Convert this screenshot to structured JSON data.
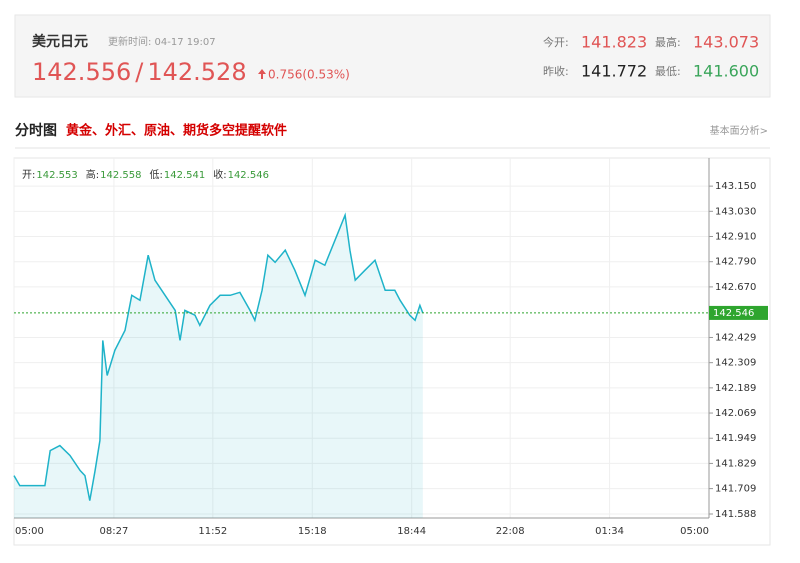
{
  "header": {
    "title": "美元日元",
    "update_time": "更新时间: 04-17 19:07",
    "price": "142.556",
    "separator": "/",
    "price2": "142.528",
    "change": "0.756(0.53%)",
    "stats": [
      {
        "label": "今开:",
        "value": "141.823"
      },
      {
        "label": "最高:",
        "value": "143.073"
      },
      {
        "label": "昨收:",
        "value": "141.772"
      },
      {
        "label": "最低:",
        "value": "141.600"
      }
    ]
  },
  "section": {
    "title": "分时图",
    "promo": "黄金、外汇、原油、期货多空提醒软件",
    "link": "基本面分析>"
  },
  "chart_data": {
    "type": "line",
    "info": [
      {
        "label": "开:",
        "value": 142.553
      },
      {
        "label": "高:",
        "value": 142.558
      },
      {
        "label": "低:",
        "value": 142.541
      },
      {
        "label": "收:",
        "value": 142.546
      }
    ],
    "x": [
      0,
      12,
      64,
      75,
      95,
      116,
      137,
      147,
      157,
      168,
      178,
      184,
      193,
      209,
      230,
      244,
      261,
      278,
      292,
      313,
      334,
      344,
      354,
      375,
      385,
      406,
      427,
      448,
      468,
      489,
      499,
      514,
      526,
      541,
      562,
      582,
      603,
      624,
      644,
      665,
      686,
      696,
      707,
      727,
      748,
      769,
      789,
      800,
      820,
      831,
      841,
      847
    ],
    "series": [
      {
        "color": "#1fb3c9",
        "values": [
          141.771,
          141.723,
          141.723,
          141.89,
          141.914,
          141.867,
          141.795,
          141.771,
          141.652,
          141.795,
          141.938,
          142.415,
          142.248,
          142.368,
          142.463,
          142.63,
          142.606,
          142.821,
          142.702,
          142.63,
          142.558,
          142.415,
          142.558,
          142.535,
          142.487,
          142.582,
          142.63,
          142.63,
          142.644,
          142.558,
          142.511,
          142.654,
          142.821,
          142.787,
          142.845,
          142.749,
          142.63,
          142.797,
          142.773,
          142.892,
          143.012,
          142.845,
          142.702,
          142.749,
          142.797,
          142.654,
          142.654,
          142.606,
          142.535,
          142.511,
          142.582,
          142.546
        ]
      }
    ],
    "last_price": 142.546,
    "last_color": "#2ea52e",
    "xlim": [
      0,
      1440
    ],
    "xticks": [
      {
        "value": 0,
        "label": "05:00"
      },
      {
        "value": 207,
        "label": "08:27"
      },
      {
        "value": 412,
        "label": "11:52"
      },
      {
        "value": 618,
        "label": "15:18"
      },
      {
        "value": 824,
        "label": "18:44"
      },
      {
        "value": 1028,
        "label": "22:08"
      },
      {
        "value": 1234,
        "label": "01:34"
      },
      {
        "value": 1440,
        "label": "05:00"
      }
    ],
    "ylim": [
      141.569,
      143.284
    ],
    "yticks": [
      {
        "value": 143.15,
        "label": "143.150"
      },
      {
        "value": 143.03,
        "label": "143.030"
      },
      {
        "value": 142.91,
        "label": "142.910"
      },
      {
        "value": 142.79,
        "label": "142.790"
      },
      {
        "value": 142.67,
        "label": "142.670"
      },
      142.429,
      142.309,
      142.189,
      142.069,
      141.949,
      141.829,
      141.709,
      141.588
    ],
    "grid": true
  }
}
